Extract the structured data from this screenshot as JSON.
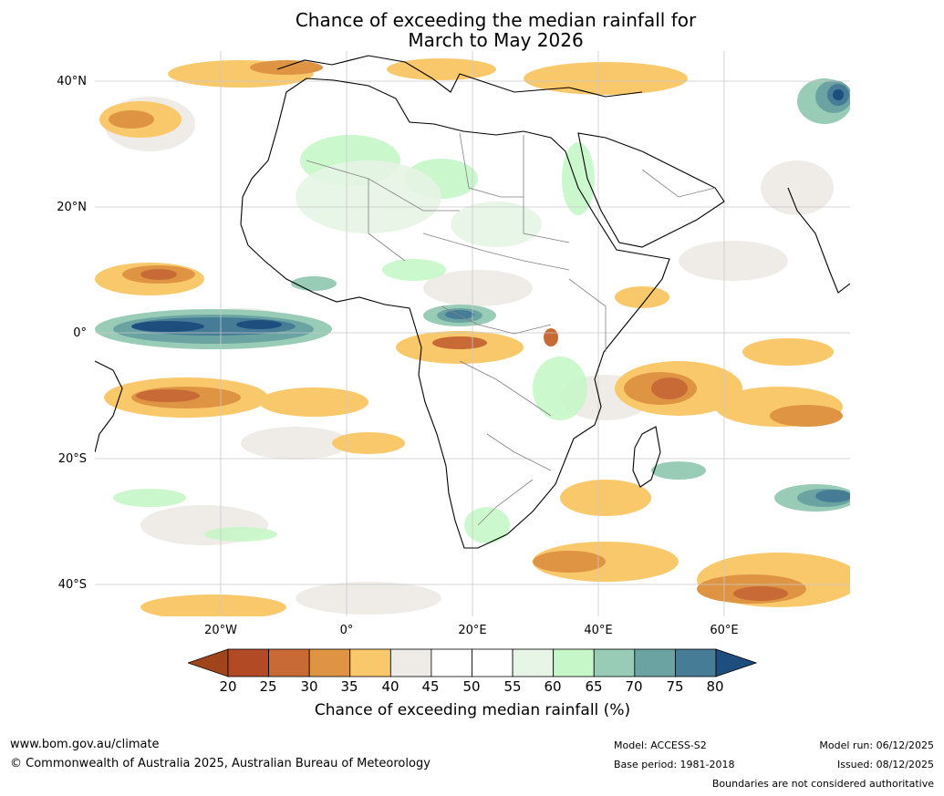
{
  "title": {
    "line1": "Chance of exceeding the median rainfall for",
    "line2": "March to May 2026"
  },
  "map": {
    "region": "Africa",
    "latitude_labels": [
      "40°N",
      "20°N",
      "0°",
      "20°S",
      "40°S"
    ],
    "longitude_labels": [
      "20°W",
      "0°",
      "20°E",
      "40°E",
      "60°E"
    ]
  },
  "legend": {
    "ticks": [
      "20",
      "25",
      "30",
      "35",
      "40",
      "45",
      "50",
      "55",
      "60",
      "65",
      "70",
      "75",
      "80"
    ],
    "colors": [
      "#a0441c",
      "#b34a26",
      "#c86a36",
      "#df9444",
      "#f9c86b",
      "#eeebe6",
      "#ffffff",
      "#ffffff",
      "#e6f5e5",
      "#c6f7c8",
      "#99ccb6",
      "#6aa3a2",
      "#467c96",
      "#1e4e7e"
    ],
    "title": "Chance of exceeding median rainfall (%)"
  },
  "footer": {
    "website": "www.bom.gov.au/climate",
    "copyright": "© Commonwealth of Australia 2025, Australian Bureau of Meteorology",
    "model": "Model: ACCESS-S2",
    "base_period": "Base period: 1981-2018",
    "model_run": "Model run: 06/12/2025",
    "issued": "Issued: 08/12/2025",
    "disclaimer": "Boundaries are not considered authoritative"
  }
}
